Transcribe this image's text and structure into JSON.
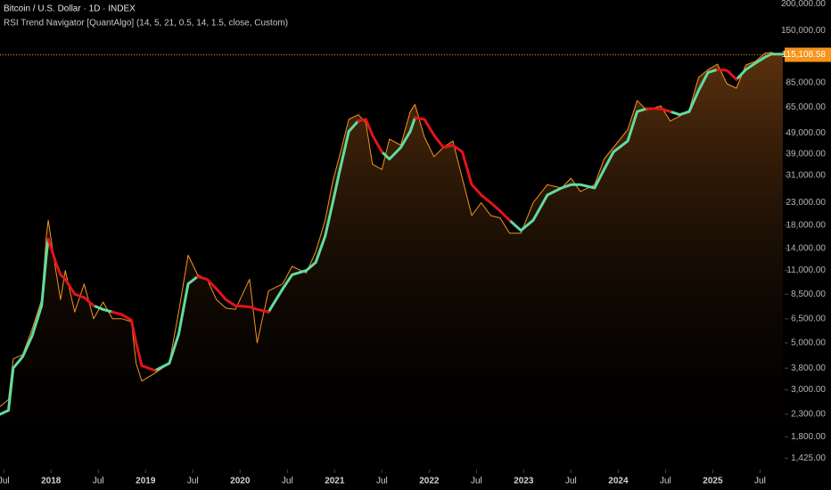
{
  "chart_data": {
    "type": "line",
    "title": "Bitcoin / U.S. Dollar · 1D · INDEX",
    "subtitle": "RSI Trend Navigator [QuantAlgo] (14, 5, 21, 0.5, 14, 1.5, close, Custom)",
    "log_scale": true,
    "x": [
      2017.46,
      2017.55,
      2017.6,
      2017.7,
      2017.8,
      2017.9,
      2017.95,
      2017.97,
      2018.05,
      2018.1,
      2018.15,
      2018.25,
      2018.35,
      2018.45,
      2018.55,
      2018.65,
      2018.75,
      2018.85,
      2018.9,
      2018.96,
      2019.1,
      2019.25,
      2019.35,
      2019.45,
      2019.55,
      2019.65,
      2019.75,
      2019.85,
      2019.95,
      2020.1,
      2020.18,
      2020.3,
      2020.45,
      2020.55,
      2020.7,
      2020.8,
      2020.9,
      2020.98,
      2021.05,
      2021.15,
      2021.25,
      2021.33,
      2021.4,
      2021.5,
      2021.58,
      2021.7,
      2021.8,
      2021.85,
      2021.95,
      2022.05,
      2022.15,
      2022.25,
      2022.35,
      2022.45,
      2022.55,
      2022.65,
      2022.75,
      2022.85,
      2022.97,
      2023.1,
      2023.25,
      2023.4,
      2023.5,
      2023.6,
      2023.75,
      2023.85,
      2023.95,
      2024.1,
      2024.2,
      2024.3,
      2024.45,
      2024.55,
      2024.65,
      2024.75,
      2024.85,
      2024.95,
      2025.05,
      2025.15,
      2025.25,
      2025.35,
      2025.45,
      2025.55,
      2025.62,
      2025.7,
      2025.74
    ],
    "series": [
      {
        "color": "#f7931a",
        "area": true,
        "values": [
          2500,
          2700,
          4200,
          4400,
          5800,
          8000,
          16000,
          19000,
          11000,
          8000,
          11000,
          7000,
          9500,
          6500,
          7800,
          6500,
          6500,
          6300,
          4000,
          3300,
          3600,
          4000,
          7000,
          13000,
          10500,
          10000,
          8000,
          7300,
          7200,
          10000,
          5000,
          8800,
          9500,
          11500,
          10700,
          13500,
          19000,
          29000,
          38000,
          57000,
          60000,
          55000,
          35000,
          33000,
          46000,
          43000,
          62000,
          67000,
          47000,
          38000,
          42000,
          45000,
          30000,
          20000,
          23000,
          20000,
          19500,
          16500,
          16500,
          23000,
          28000,
          27000,
          30000,
          26000,
          28000,
          37000,
          42000,
          51000,
          70000,
          63000,
          66000,
          56000,
          59000,
          63000,
          90000,
          98000,
          104000,
          84000,
          80000,
          103000,
          107000,
          117000,
          118000,
          115000,
          115108.58
        ]
      },
      {
        "color": "#5fdca0",
        "values": [
          2300,
          2400,
          3800,
          4300,
          5400,
          7500,
          13000,
          15500,
          null,
          null,
          null,
          null,
          null,
          7500,
          7200,
          7000,
          null,
          null,
          null,
          null,
          3700,
          4000,
          5500,
          9500,
          10300,
          null,
          null,
          null,
          null,
          null,
          null,
          7000,
          9000,
          10500,
          11000,
          12000,
          16000,
          23000,
          32000,
          50000,
          56000,
          null,
          null,
          40000,
          37000,
          42000,
          50000,
          58000,
          null,
          null,
          null,
          null,
          null,
          null,
          null,
          null,
          null,
          19000,
          17000,
          19000,
          25000,
          27000,
          28000,
          28000,
          27000,
          33000,
          40000,
          45000,
          62000,
          64000,
          null,
          62000,
          60000,
          62000,
          78000,
          95000,
          98000,
          null,
          88000,
          98000,
          105000,
          112000,
          116000,
          116000,
          116000
        ]
      },
      {
        "color": "#e3141b",
        "values": [
          null,
          null,
          null,
          null,
          null,
          null,
          null,
          15500,
          12000,
          10500,
          10000,
          8500,
          8200,
          7500,
          null,
          7000,
          6800,
          6400,
          5000,
          3900,
          3700,
          null,
          null,
          null,
          10300,
          10000,
          9000,
          8000,
          7500,
          7400,
          7200,
          7000,
          null,
          null,
          null,
          null,
          null,
          null,
          null,
          null,
          56000,
          57000,
          48000,
          40000,
          null,
          null,
          null,
          58000,
          57000,
          48000,
          42000,
          43000,
          40000,
          28000,
          25000,
          23000,
          21000,
          19000,
          null,
          null,
          null,
          null,
          null,
          null,
          null,
          null,
          null,
          null,
          null,
          64000,
          64000,
          62000,
          null,
          null,
          null,
          null,
          98000,
          97000,
          88000,
          null,
          null,
          null,
          null,
          null,
          null
        ]
      }
    ],
    "price_label": {
      "value": 115108.58,
      "label": "115,108.58"
    },
    "xlim": [
      2017.46,
      2025.76
    ],
    "xticks": [
      {
        "value": 2017.5,
        "label": "Jul"
      },
      2018,
      {
        "value": 2018.5,
        "label": "Jul"
      },
      2019,
      {
        "value": 2019.5,
        "label": "Jul"
      },
      2020,
      {
        "value": 2020.5,
        "label": "Jul"
      },
      2021,
      {
        "value": 2021.5,
        "label": "Jul"
      },
      2022,
      {
        "value": 2022.5,
        "label": "Jul"
      },
      2023,
      {
        "value": 2023.5,
        "label": "Jul"
      },
      2024,
      {
        "value": 2024.5,
        "label": "Jul"
      },
      2025,
      {
        "value": 2025.5,
        "label": "Jul"
      }
    ],
    "ylim": [
      1260,
      209000
    ],
    "yticks": [
      {
        "value": 200000,
        "label": "200,000.00"
      },
      {
        "value": 150000,
        "label": "150,000.00"
      },
      {
        "value": 85000,
        "label": "85,000.00"
      },
      {
        "value": 65000,
        "label": "65,000.00"
      },
      {
        "value": 49000,
        "label": "49,000.00"
      },
      {
        "value": 39000,
        "label": "39,000.00"
      },
      {
        "value": 31000,
        "label": "31,000.00"
      },
      {
        "value": 23000,
        "label": "23,000.00"
      },
      {
        "value": 18000,
        "label": "18,000.00"
      },
      {
        "value": 14000,
        "label": "14,000.00"
      },
      {
        "value": 11000,
        "label": "11,000.00"
      },
      {
        "value": 8500,
        "label": "8,500.00"
      },
      {
        "value": 6500,
        "label": "6,500.00"
      },
      {
        "value": 5000,
        "label": "5,000.00"
      },
      {
        "value": 3800,
        "label": "3,800.00"
      },
      {
        "value": 3000,
        "label": "3,000.00"
      },
      {
        "value": 2300,
        "label": "2,300.00"
      },
      {
        "value": 1800,
        "label": "1,800.00"
      },
      {
        "value": 1425,
        "label": "1,425.00"
      }
    ]
  }
}
